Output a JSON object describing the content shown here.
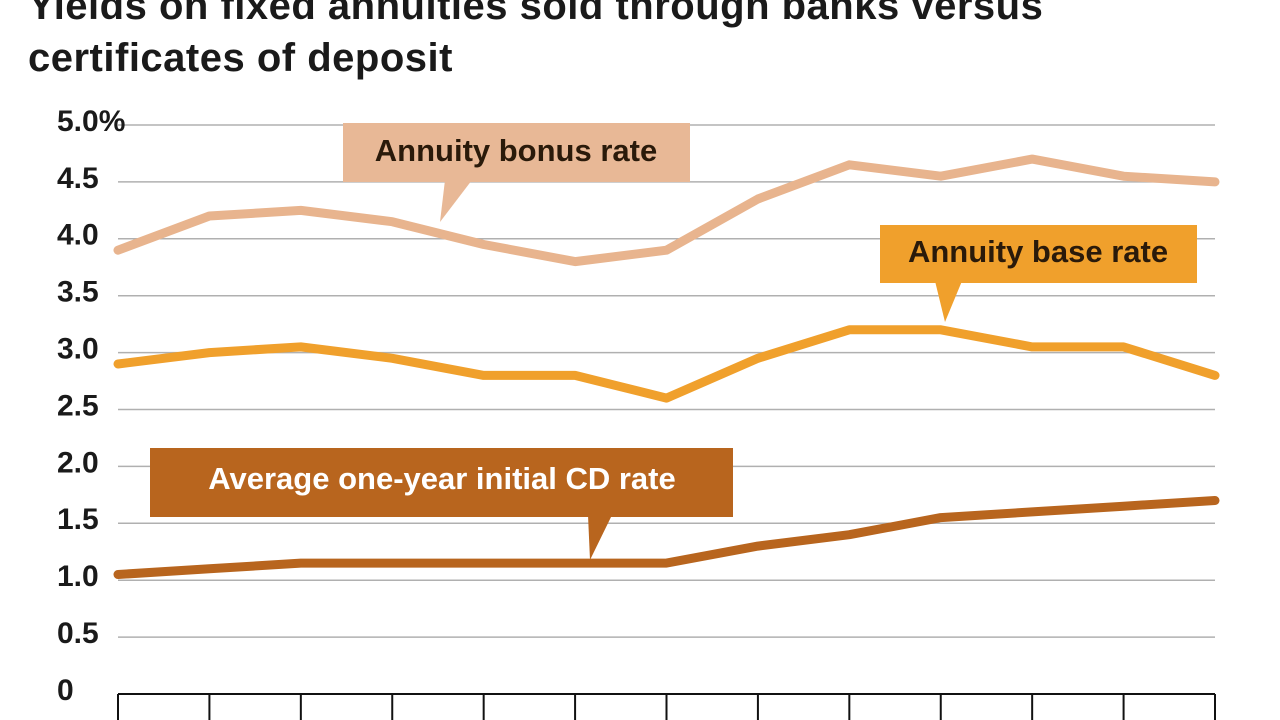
{
  "chart_data": {
    "type": "line",
    "title": "Yields on fixed annuities sold through banks versus certificates of deposit",
    "categories": [
      null,
      null,
      null,
      null,
      null,
      null,
      null,
      null,
      null,
      null,
      null,
      null,
      null
    ],
    "series": [
      {
        "name": "Annuity bonus rate",
        "color": "#e8b48e",
        "values": [
          3.9,
          4.2,
          4.25,
          4.15,
          3.95,
          3.8,
          3.9,
          4.35,
          4.65,
          4.55,
          4.7,
          4.55,
          4.5
        ]
      },
      {
        "name": "Annuity base rate",
        "color": "#f0a02c",
        "values": [
          2.9,
          3.0,
          3.05,
          2.95,
          2.8,
          2.8,
          2.6,
          2.95,
          3.2,
          3.2,
          3.05,
          3.05,
          2.8
        ]
      },
      {
        "name": "Average one-year initial CD rate",
        "color": "#b8651e",
        "values": [
          1.05,
          1.1,
          1.15,
          1.15,
          1.15,
          1.15,
          1.15,
          1.3,
          1.4,
          1.55,
          1.6,
          1.65,
          1.7
        ]
      }
    ],
    "ylim": [
      0,
      5
    ],
    "yticks": [
      0,
      0.5,
      {
        "value": 1,
        "label": "1.0"
      },
      1.5,
      {
        "value": 2,
        "label": "2.0"
      },
      2.5,
      {
        "value": 3,
        "label": "3.0"
      },
      3.5,
      {
        "value": 4,
        "label": "4.0"
      },
      4.5,
      {
        "value": 5,
        "label": "5.0%"
      }
    ],
    "grid": true
  }
}
